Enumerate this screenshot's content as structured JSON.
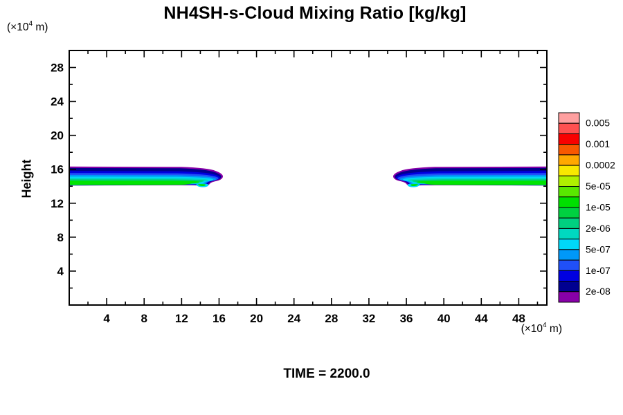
{
  "title": "NH4SH-s-Cloud Mixing Ratio [kg/kg]",
  "height_label": "Height",
  "time_label": "TIME = 2200.0",
  "units": {
    "prefix": "(×10",
    "exponent": "4",
    "suffix": " m)"
  },
  "colorbar": {
    "block_colors_top_to_bottom": [
      "#ffa0a0",
      "#ff5050",
      "#f80000",
      "#f85800",
      "#ffa800",
      "#f8e800",
      "#b0f000",
      "#58e800",
      "#00e000",
      "#00d040",
      "#00d080",
      "#00d8c0",
      "#00d8f8",
      "#0098f8",
      "#2050f8",
      "#0000e0",
      "#000090",
      "#8800a8"
    ],
    "boundary_labels_top_to_bottom": [
      "0.005",
      "",
      "0.001",
      "",
      "0.0002",
      "",
      "5e-05",
      "",
      "1e-05",
      "",
      "2e-06",
      "",
      "5e-07",
      "",
      "1e-07",
      "",
      "2e-08"
    ]
  },
  "band_colors_top_to_bottom": [
    "#8800a8",
    "#000090",
    "#0000e0",
    "#2050f8",
    "#0098f8",
    "#00d8f8",
    "#00d8c0",
    "#00d070",
    "#00e400"
  ],
  "chart_data": {
    "type": "filled_contour",
    "title": "NH4SH-s-Cloud Mixing Ratio [kg/kg]",
    "xlabel": "(×10^4 m)",
    "ylabel": "Height (×10^4 m)",
    "xlim": [
      0,
      51
    ],
    "ylim": [
      0,
      30
    ],
    "grid": false,
    "legend_position": "right-colorbar",
    "x_ticks_major": [
      4,
      8,
      12,
      16,
      20,
      24,
      28,
      32,
      36,
      40,
      44,
      48
    ],
    "x_ticks_minor": [
      2,
      6,
      10,
      14,
      18,
      22,
      26,
      30,
      34,
      38,
      42,
      46,
      50
    ],
    "y_ticks_major": [
      4,
      8,
      12,
      16,
      20,
      24,
      28
    ],
    "y_ticks_minor": [
      2,
      6,
      10,
      14,
      18,
      22,
      26,
      30
    ],
    "time_annotation": "TIME = 2200.0",
    "contour_levels_kg_per_kg": [
      2e-08,
      5e-08,
      1e-07,
      2e-07,
      5e-07,
      1e-06,
      2e-06,
      5e-06,
      1e-05,
      2e-05,
      5e-05,
      0.0001,
      0.0002,
      0.0005,
      0.001,
      0.002,
      0.005
    ],
    "labeled_levels": [
      "0.005",
      "0.001",
      "0.0002",
      "5e-05",
      "1e-05",
      "2e-06",
      "5e-07",
      "1e-07",
      "2e-08"
    ],
    "features": [
      {
        "name": "left-cloud-band",
        "x_extent_e4m": [
          0,
          16.4
        ],
        "height_extent_e4m": [
          14.1,
          16.3
        ],
        "description": "thin stratified cloud layer attached to left axis, tapering to a rounded blue tip; top rim purple/navy (lowest mixing ratio), thick bright-green core near bottom (~1e-05 to 2e-05 kg/kg)"
      },
      {
        "name": "right-cloud-band",
        "x_extent_e4m": [
          34.6,
          51
        ],
        "height_extent_e4m": [
          14.1,
          16.3
        ],
        "description": "mirror image of left band, attached to right axis, tapering to a rounded blue tip pointing left"
      }
    ]
  }
}
